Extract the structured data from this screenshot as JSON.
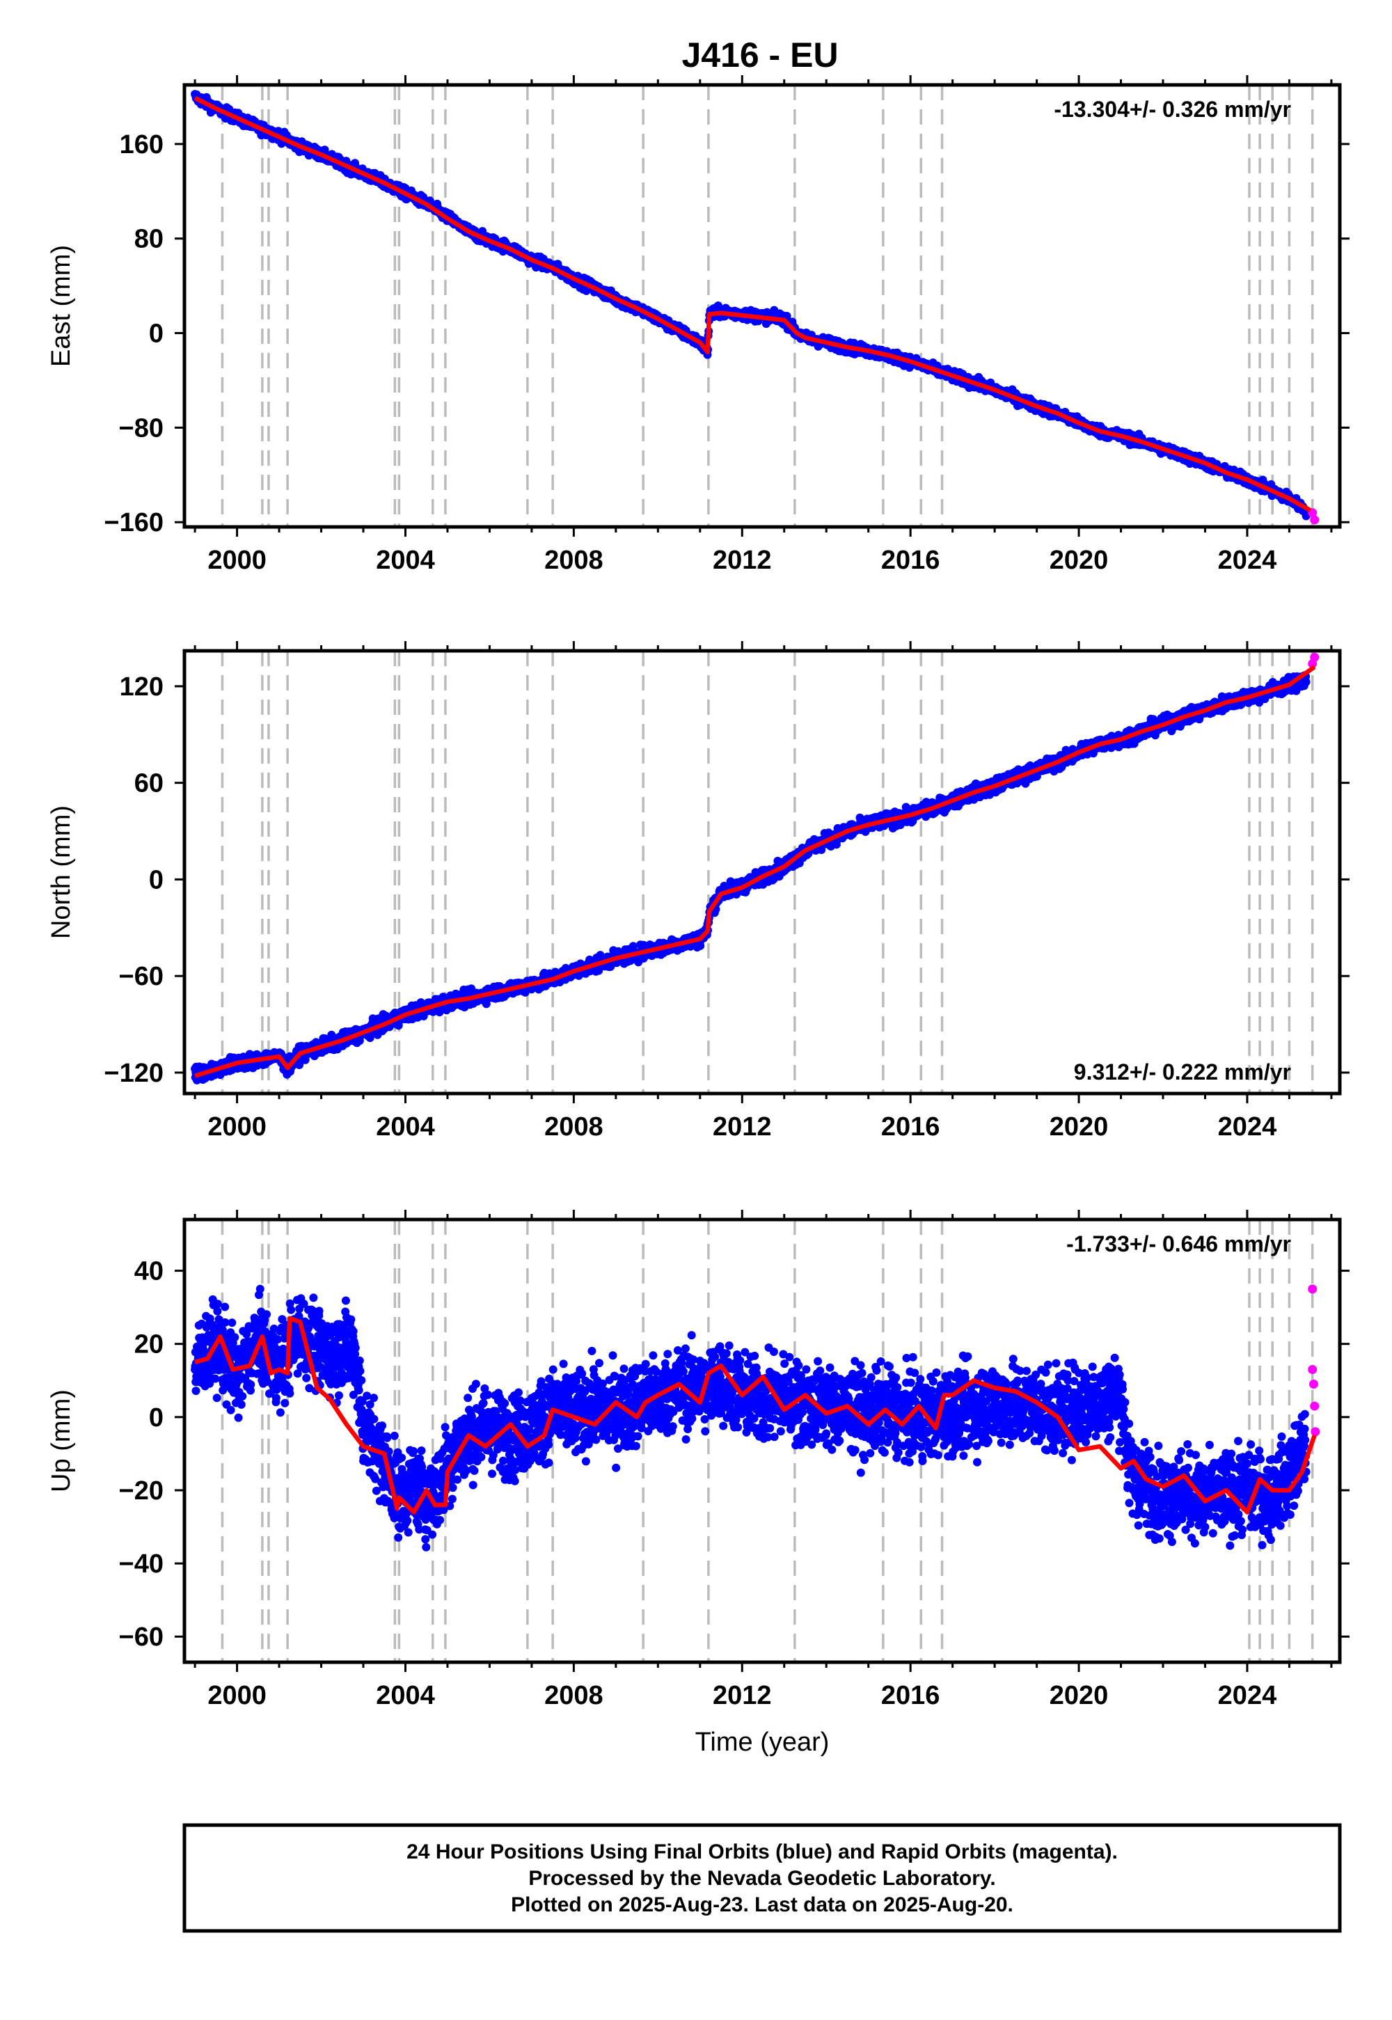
{
  "title": "J416 - EU",
  "footer": {
    "lines": [
      "24 Hour Positions Using Final Orbits (blue) and Rapid Orbits (magenta).",
      "Processed by the Nevada Geodetic Laboratory.",
      "Plotted on 2025-Aug-23. Last data on 2025-Aug-20."
    ]
  },
  "colors": {
    "final_points": "#0000ff",
    "rapid_points": "#ff00ff",
    "model_line": "#ff0000",
    "event_lines": "#bbbbbb",
    "axes": "#000000"
  },
  "events": [
    1999.65,
    2000.6,
    2000.75,
    2001.2,
    2003.75,
    2003.85,
    2004.65,
    2004.95,
    2006.9,
    2007.5,
    2009.65,
    2011.2,
    2013.25,
    2015.35,
    2016.25,
    2016.75,
    2024.05,
    2024.3,
    2024.6,
    2025.0,
    2025.55
  ],
  "chart_data": [
    {
      "type": "scatter",
      "ylabel": "East (mm)",
      "xlabel": "",
      "xlim": [
        1998.75,
        2026.2
      ],
      "ylim": [
        -164,
        210
      ],
      "xticks": [
        2000,
        2004,
        2008,
        2012,
        2016,
        2020,
        2024
      ],
      "yticks": [
        -160,
        -80,
        0,
        80,
        160
      ],
      "rate_label": "-13.304+/- 0.326 mm/yr",
      "rate_position": "top-right",
      "series": [
        {
          "role": "final",
          "x": [
            1999.0,
            1999.5,
            2000.0,
            2000.5,
            2001.0,
            2001.5,
            2002.0,
            2002.5,
            2003.0,
            2003.5,
            2004.0,
            2004.5,
            2005.0,
            2005.5,
            2006.0,
            2006.5,
            2007.0,
            2007.5,
            2008.0,
            2008.5,
            2009.0,
            2009.5,
            2010.0,
            2010.5,
            2011.0,
            2011.18,
            2011.22,
            2011.5,
            2012.0,
            2012.5,
            2013.0,
            2013.3,
            2013.5,
            2014.0,
            2014.5,
            2015.0,
            2015.5,
            2016.0,
            2016.5,
            2017.0,
            2017.5,
            2018.0,
            2018.5,
            2019.0,
            2019.5,
            2020.0,
            2020.5,
            2021.0,
            2021.5,
            2022.0,
            2022.5,
            2023.0,
            2023.5,
            2024.0,
            2024.5,
            2025.0,
            2025.4
          ],
          "y": [
            200,
            190,
            182,
            174,
            167,
            158,
            151,
            143,
            135,
            127,
            118,
            110,
            98,
            86,
            78,
            72,
            62,
            56,
            46,
            38,
            29,
            21,
            12,
            2,
            -8,
            -16,
            16,
            18,
            16,
            14,
            12,
            0,
            -4,
            -8,
            -12,
            -15,
            -19,
            -24,
            -30,
            -36,
            -42,
            -48,
            -55,
            -62,
            -68,
            -76,
            -83,
            -87,
            -92,
            -98,
            -104,
            -110,
            -118,
            -124,
            -132,
            -140,
            -150
          ]
        },
        {
          "role": "rapid",
          "x": [
            2025.55,
            2025.6
          ],
          "y": [
            -152,
            -158
          ]
        },
        {
          "role": "model",
          "x": [
            1999.0,
            1999.5,
            2000.0,
            2000.5,
            2001.0,
            2001.5,
            2002.0,
            2002.5,
            2003.0,
            2003.5,
            2004.0,
            2004.5,
            2005.0,
            2005.5,
            2006.0,
            2006.5,
            2007.0,
            2007.5,
            2008.0,
            2008.5,
            2009.0,
            2009.5,
            2010.0,
            2010.5,
            2011.0,
            2011.18,
            2011.22,
            2011.5,
            2012.0,
            2012.5,
            2013.0,
            2013.3,
            2013.5,
            2014.0,
            2014.5,
            2015.0,
            2015.5,
            2016.0,
            2016.5,
            2017.0,
            2017.5,
            2018.0,
            2018.5,
            2019.0,
            2019.5,
            2020.0,
            2020.5,
            2021.0,
            2021.5,
            2022.0,
            2022.5,
            2023.0,
            2023.5,
            2024.0,
            2024.5,
            2025.0,
            2025.5
          ],
          "y": [
            199,
            190,
            182,
            174,
            166,
            158,
            151,
            143,
            135,
            127,
            118,
            109,
            97,
            86,
            78,
            71,
            62,
            55,
            46,
            38,
            29,
            21,
            12,
            2,
            -8,
            -16,
            16,
            17,
            15,
            13,
            11,
            0,
            -4,
            -8,
            -12,
            -15,
            -19,
            -24,
            -30,
            -36,
            -42,
            -48,
            -55,
            -62,
            -68,
            -76,
            -83,
            -87,
            -92,
            -98,
            -104,
            -110,
            -118,
            -124,
            -132,
            -140,
            -150
          ]
        }
      ]
    },
    {
      "type": "scatter",
      "ylabel": "North (mm)",
      "xlabel": "",
      "xlim": [
        1998.75,
        2026.2
      ],
      "ylim": [
        -133,
        142
      ],
      "xticks": [
        2000,
        2004,
        2008,
        2012,
        2016,
        2020,
        2024
      ],
      "yticks": [
        -120,
        -60,
        0,
        60,
        120
      ],
      "rate_label": "9.312+/- 0.222 mm/yr",
      "rate_position": "bottom-right",
      "series": [
        {
          "role": "final",
          "x": [
            1999.0,
            1999.5,
            2000.0,
            2000.5,
            2001.0,
            2001.2,
            2001.5,
            2002.0,
            2002.5,
            2003.0,
            2003.5,
            2004.0,
            2004.5,
            2005.0,
            2005.5,
            2006.0,
            2006.5,
            2007.0,
            2007.5,
            2008.0,
            2008.5,
            2009.0,
            2009.5,
            2010.0,
            2010.5,
            2011.0,
            2011.18,
            2011.22,
            2011.5,
            2012.0,
            2012.5,
            2013.0,
            2013.5,
            2014.0,
            2014.5,
            2015.0,
            2015.5,
            2016.0,
            2016.5,
            2017.0,
            2017.5,
            2018.0,
            2018.5,
            2019.0,
            2019.5,
            2020.0,
            2020.5,
            2021.0,
            2021.5,
            2022.0,
            2022.5,
            2023.0,
            2023.5,
            2024.0,
            2024.5,
            2025.0,
            2025.4
          ],
          "y": [
            -121,
            -118,
            -114,
            -112,
            -110,
            -117,
            -108,
            -104,
            -100,
            -95,
            -90,
            -84,
            -80,
            -76,
            -74,
            -71,
            -68,
            -65,
            -62,
            -57,
            -53,
            -49,
            -46,
            -43,
            -40,
            -37,
            -32,
            -20,
            -8,
            -4,
            2,
            8,
            18,
            24,
            30,
            34,
            37,
            40,
            44,
            49,
            54,
            58,
            63,
            68,
            73,
            79,
            84,
            87,
            92,
            96,
            101,
            105,
            110,
            113,
            117,
            121,
            124
          ]
        },
        {
          "role": "rapid",
          "x": [
            2025.55,
            2025.6
          ],
          "y": [
            134,
            138
          ]
        },
        {
          "role": "model",
          "x": [
            1999.0,
            1999.5,
            2000.0,
            2000.5,
            2001.0,
            2001.2,
            2001.5,
            2002.0,
            2002.5,
            2003.0,
            2003.5,
            2004.0,
            2004.5,
            2005.0,
            2005.5,
            2006.0,
            2006.5,
            2007.0,
            2007.5,
            2008.0,
            2008.5,
            2009.0,
            2009.5,
            2010.0,
            2010.5,
            2011.0,
            2011.18,
            2011.22,
            2011.5,
            2012.0,
            2012.5,
            2013.0,
            2013.5,
            2014.0,
            2014.5,
            2015.0,
            2015.5,
            2016.0,
            2016.5,
            2017.0,
            2017.5,
            2018.0,
            2018.5,
            2019.0,
            2019.5,
            2020.0,
            2020.5,
            2021.0,
            2021.5,
            2022.0,
            2022.5,
            2023.0,
            2023.5,
            2024.0,
            2024.5,
            2025.0,
            2025.6
          ],
          "y": [
            -122,
            -118,
            -114,
            -112,
            -110,
            -117,
            -108,
            -104,
            -100,
            -95,
            -90,
            -84,
            -80,
            -76,
            -74,
            -71,
            -68,
            -65,
            -62,
            -57,
            -53,
            -49,
            -46,
            -43,
            -40,
            -37,
            -32,
            -20,
            -9,
            -5,
            2,
            8,
            18,
            24,
            30,
            34,
            37,
            40,
            44,
            49,
            54,
            58,
            63,
            68,
            73,
            79,
            84,
            87,
            92,
            96,
            101,
            105,
            110,
            113,
            117,
            121,
            132
          ]
        }
      ]
    },
    {
      "type": "scatter",
      "ylabel": "Up (mm)",
      "xlabel": "Time (year)",
      "xlim": [
        1998.75,
        2026.2
      ],
      "ylim": [
        -67,
        54
      ],
      "xticks": [
        2000,
        2004,
        2008,
        2012,
        2016,
        2020,
        2024
      ],
      "yticks": [
        -60,
        -40,
        -20,
        0,
        20,
        40
      ],
      "rate_label": "-1.733+/- 0.646 mm/yr",
      "rate_position": "top-right",
      "series": [
        {
          "role": "final",
          "x": [
            1999.0,
            1999.5,
            2000.0,
            2000.5,
            2001.0,
            2001.5,
            2002.0,
            2002.5,
            2002.8,
            2003.0,
            2003.3,
            2003.6,
            2003.9,
            2004.2,
            2004.5,
            2004.8,
            2005.0,
            2005.5,
            2006.0,
            2006.5,
            2007.0,
            2007.5,
            2008.0,
            2008.5,
            2009.0,
            2009.5,
            2010.0,
            2010.5,
            2011.0,
            2011.5,
            2012.0,
            2012.5,
            2013.0,
            2013.5,
            2014.0,
            2014.5,
            2015.0,
            2015.5,
            2016.0,
            2016.5,
            2017.0,
            2017.5,
            2018.0,
            2018.5,
            2019.0,
            2019.5,
            2020.0,
            2020.5,
            2021.0,
            2021.2,
            2021.5,
            2022.0,
            2022.5,
            2023.0,
            2023.5,
            2024.0,
            2024.5,
            2025.0,
            2025.4
          ],
          "y": [
            14,
            20,
            11,
            21,
            13,
            24,
            17,
            18,
            18,
            -3,
            -8,
            -15,
            -22,
            -18,
            -22,
            -20,
            -12,
            -5,
            -3,
            -6,
            -3,
            2,
            0,
            3,
            1,
            4,
            5,
            8,
            7,
            10,
            6,
            4,
            6,
            3,
            3,
            2,
            1,
            2,
            0,
            0,
            2,
            2,
            4,
            3,
            3,
            1,
            3,
            5,
            6,
            -15,
            -18,
            -22,
            -20,
            -23,
            -21,
            -20,
            -22,
            -16,
            -8
          ]
        },
        {
          "role": "rapid",
          "x": [
            2025.55,
            2025.55,
            2025.58,
            2025.6,
            2025.62
          ],
          "y": [
            35,
            13,
            9,
            3,
            -4
          ]
        },
        {
          "role": "model",
          "x": [
            1999.0,
            1999.3,
            1999.6,
            1999.9,
            2000.3,
            2000.6,
            2000.8,
            2001.0,
            2001.2,
            2001.25,
            2001.5,
            2001.9,
            2002.2,
            2002.6,
            2003.0,
            2003.5,
            2003.8,
            2003.85,
            2004.2,
            2004.5,
            2004.7,
            2004.95,
            2005.0,
            2005.5,
            2005.9,
            2006.5,
            2006.9,
            2007.3,
            2007.5,
            2008.0,
            2008.5,
            2009.0,
            2009.5,
            2009.7,
            2010.0,
            2010.5,
            2011.0,
            2011.2,
            2011.5,
            2012.0,
            2012.5,
            2013.0,
            2013.5,
            2014.0,
            2014.5,
            2015.0,
            2015.4,
            2015.8,
            2016.2,
            2016.6,
            2016.8,
            2017.0,
            2017.5,
            2018.0,
            2018.5,
            2019.0,
            2019.5,
            2020.0,
            2020.5,
            2021.0,
            2021.3,
            2021.6,
            2022.0,
            2022.5,
            2023.0,
            2023.5,
            2024.0,
            2024.3,
            2024.6,
            2025.0,
            2025.3,
            2025.6
          ],
          "y": [
            15,
            16,
            22,
            13,
            14,
            22,
            12,
            13,
            12,
            27,
            26,
            8,
            5,
            -2,
            -8,
            -10,
            -25,
            -22,
            -26,
            -20,
            -24,
            -24,
            -15,
            -5,
            -8,
            -2,
            -8,
            -5,
            2,
            0,
            -2,
            4,
            0,
            4,
            6,
            9,
            4,
            12,
            14,
            6,
            11,
            2,
            6,
            1,
            3,
            -2,
            2,
            -2,
            3,
            -3,
            6,
            6,
            10,
            8,
            7,
            4,
            0,
            -9,
            -8,
            -14,
            -12,
            -17,
            -19,
            -16,
            -23,
            -20,
            -26,
            -17,
            -20,
            -20,
            -15,
            -5
          ]
        }
      ]
    }
  ]
}
